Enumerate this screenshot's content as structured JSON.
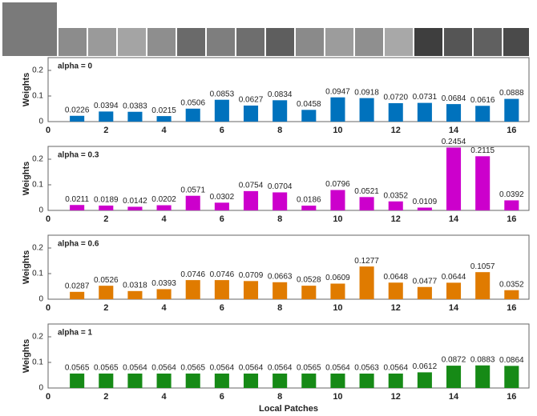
{
  "chart_data": [
    {
      "type": "bar",
      "title": "alpha = 0",
      "ylabel": "Weights",
      "color": "#0072bd",
      "x": [
        1,
        2,
        3,
        4,
        5,
        6,
        7,
        8,
        9,
        10,
        11,
        12,
        13,
        14,
        15,
        16
      ],
      "values": [
        0.0226,
        0.0394,
        0.0383,
        0.0215,
        0.0506,
        0.0853,
        0.0627,
        0.0834,
        0.0458,
        0.0947,
        0.0918,
        0.072,
        0.0731,
        0.0684,
        0.0616,
        0.0888
      ],
      "value_labels": [
        "0.0226",
        "0.0394",
        "0.0383",
        "0.0215",
        "0.0506",
        "0.0853",
        "0.0627",
        "0.0834",
        "0.0458",
        "0.0947",
        "0.0918",
        "0.0720",
        "0.0731",
        "0.0684",
        "0.0616",
        "0.0888"
      ],
      "xlim": [
        0,
        16.6
      ],
      "xticks": [
        0,
        2,
        4,
        6,
        8,
        10,
        12,
        14,
        16
      ],
      "ylim": [
        0,
        0.25
      ],
      "yticks": [
        0,
        0.1,
        0.2
      ]
    },
    {
      "type": "bar",
      "title": "alpha = 0.3",
      "ylabel": "Weights",
      "color": "#cc00cc",
      "x": [
        1,
        2,
        3,
        4,
        5,
        6,
        7,
        8,
        9,
        10,
        11,
        12,
        13,
        14,
        15,
        16
      ],
      "values": [
        0.0211,
        0.0189,
        0.0142,
        0.0202,
        0.0571,
        0.0302,
        0.0754,
        0.0704,
        0.0186,
        0.0796,
        0.0521,
        0.0352,
        0.0109,
        0.2454,
        0.2115,
        0.0392
      ],
      "value_labels": [
        "0.0211",
        "0.0189",
        "0.0142",
        "0.0202",
        "0.0571",
        "0.0302",
        "0.0754",
        "0.0704",
        "0.0186",
        "0.0796",
        "0.0521",
        "0.0352",
        "0.0109",
        "0.2454",
        "0.2115",
        "0.0392"
      ],
      "xlim": [
        0,
        16.6
      ],
      "xticks": [
        0,
        2,
        4,
        6,
        8,
        10,
        12,
        14,
        16
      ],
      "ylim": [
        0,
        0.25
      ],
      "yticks": [
        0,
        0.1,
        0.2
      ]
    },
    {
      "type": "bar",
      "title": "alpha = 0.6",
      "ylabel": "Weights",
      "color": "#e07b00",
      "x": [
        1,
        2,
        3,
        4,
        5,
        6,
        7,
        8,
        9,
        10,
        11,
        12,
        13,
        14,
        15,
        16
      ],
      "values": [
        0.0287,
        0.0526,
        0.0318,
        0.0393,
        0.0746,
        0.0746,
        0.0709,
        0.0663,
        0.0528,
        0.0609,
        0.1277,
        0.0648,
        0.0477,
        0.0644,
        0.1057,
        0.0352
      ],
      "value_labels": [
        "0.0287",
        "0.0526",
        "0.0318",
        "0.0393",
        "0.0746",
        "0.0746",
        "0.0709",
        "0.0663",
        "0.0528",
        "0.0609",
        "0.1277",
        "0.0648",
        "0.0477",
        "0.0644",
        "0.1057",
        "0.0352"
      ],
      "xlim": [
        0,
        16.6
      ],
      "xticks": [
        0,
        2,
        4,
        6,
        8,
        10,
        12,
        14,
        16
      ],
      "ylim": [
        0,
        0.25
      ],
      "yticks": [
        0,
        0.1,
        0.2
      ]
    },
    {
      "type": "bar",
      "title": "alpha = 1",
      "ylabel": "Weights",
      "xlabel": "Local Patches",
      "color": "#168a16",
      "x": [
        1,
        2,
        3,
        4,
        5,
        6,
        7,
        8,
        9,
        10,
        11,
        12,
        13,
        14,
        15,
        16
      ],
      "values": [
        0.0565,
        0.0565,
        0.0564,
        0.0564,
        0.0565,
        0.0564,
        0.0564,
        0.0564,
        0.0565,
        0.0564,
        0.0563,
        0.0564,
        0.0612,
        0.0872,
        0.0883,
        0.0864
      ],
      "value_labels": [
        "0.0565",
        "0.0565",
        "0.0564",
        "0.0564",
        "0.0565",
        "0.0564",
        "0.0564",
        "0.0564",
        "0.0565",
        "0.0564",
        "0.0563",
        "0.0564",
        "0.0612",
        "0.0872",
        "0.0883",
        "0.0864"
      ],
      "xlim": [
        0,
        16.6
      ],
      "xticks": [
        0,
        2,
        4,
        6,
        8,
        10,
        12,
        14,
        16
      ],
      "ylim": [
        0,
        0.25
      ],
      "yticks": [
        0,
        0.1,
        0.2
      ]
    }
  ]
}
